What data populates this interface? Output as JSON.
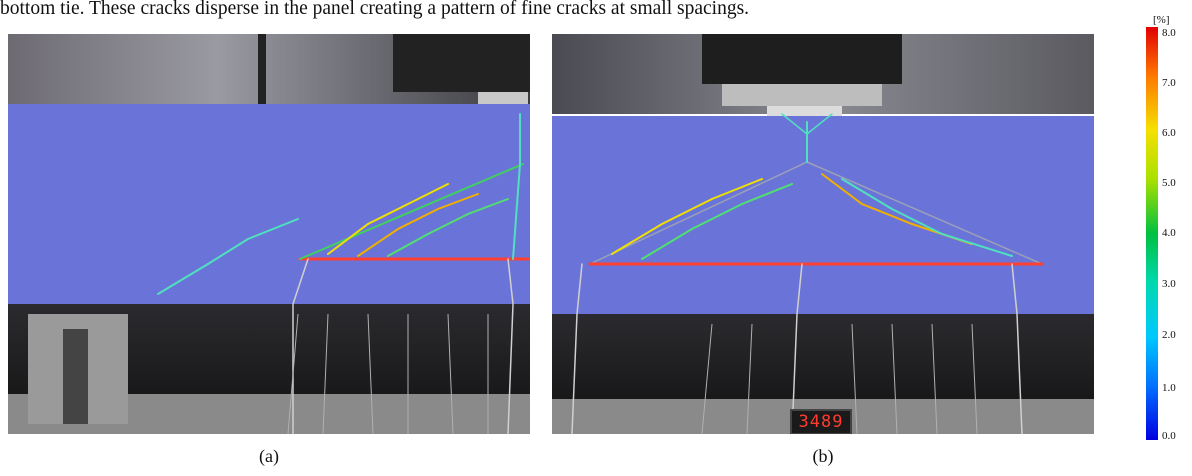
{
  "caption_line": "bottom tie. These cracks disperse in the panel creating a pattern of fine cracks at small spacings.",
  "panels": [
    {
      "label": "(a)"
    },
    {
      "label": "(b)",
      "counter_display": "3489"
    }
  ],
  "colorbar": {
    "unit": "[%]",
    "ticks": [
      "8.0",
      "7.0",
      "6.0",
      "5.0",
      "4.0",
      "3.0",
      "2.0",
      "1.0",
      "0.0"
    ],
    "colors": [
      "#e00000",
      "#ff7a00",
      "#f5e000",
      "#00c040",
      "#00c8ff",
      "#0000e0"
    ]
  }
}
